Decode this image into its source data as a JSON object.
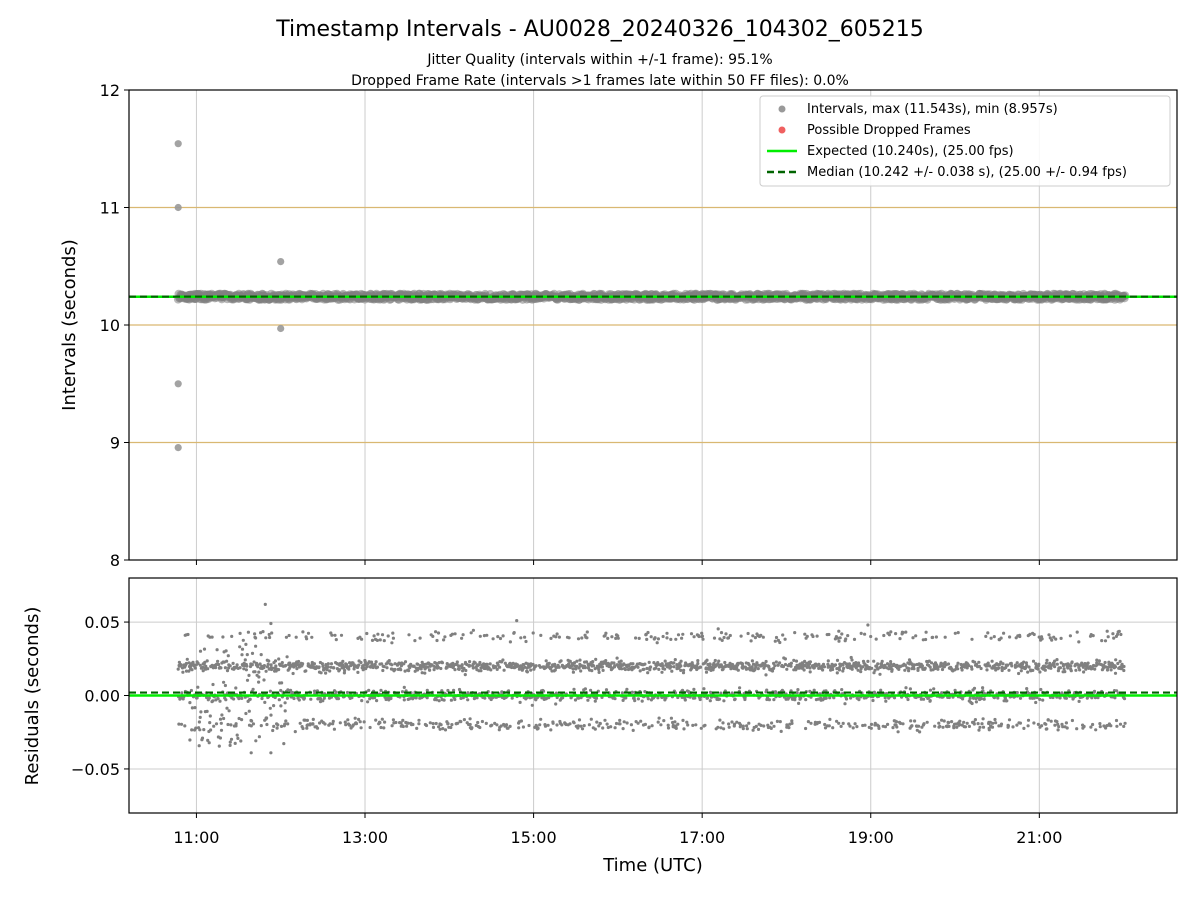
{
  "title": "Timestamp Intervals - AU0028_20240326_104302_605215",
  "subtitle_lines": [
    "Jitter Quality (intervals within +/-1 frame): 95.1%",
    "Dropped Frame Rate (intervals >1 frames late within 50 FF files): 0.0%"
  ],
  "colors": {
    "points": "#808080",
    "dropped": "#f06060",
    "expected": "#00ee00",
    "median": "#006400",
    "hband": "#d9b872",
    "grid": "#cccccc"
  },
  "chart_data": [
    {
      "type": "scatter",
      "panel": "intervals",
      "ylabel": "Intervals (seconds)",
      "ylim": [
        8,
        12
      ],
      "yticks": [
        "8",
        "9",
        "10",
        "11",
        "12"
      ],
      "xlim": [
        "10:12",
        "22:38"
      ],
      "grid": true,
      "horizontal_reference_lines": [
        9,
        10,
        11
      ],
      "legend_position": "upper right",
      "legend": [
        {
          "label": "Intervals, max (11.543s), min (8.957s)",
          "kind": "marker",
          "color": "#999999"
        },
        {
          "label": "Possible Dropped Frames",
          "kind": "marker",
          "color": "#f06060"
        },
        {
          "label": "Expected (10.240s), (25.00 fps)",
          "kind": "line",
          "color": "#00ee00"
        },
        {
          "label": "Median (10.242 +/- 0.038 s), (25.00 +/- 0.94 fps)",
          "kind": "dashed",
          "color": "#006400"
        }
      ],
      "expected": 10.24,
      "median": 10.242,
      "series": [
        {
          "name": "Intervals",
          "x_range": [
            "10:47",
            "22:01"
          ],
          "typical_value": 10.24,
          "spread": 0.05
        },
        {
          "name": "Outliers",
          "points": [
            {
              "x": "10:47",
              "y": 11.543
            },
            {
              "x": "10:47",
              "y": 11.0
            },
            {
              "x": "10:47",
              "y": 9.5
            },
            {
              "x": "10:47",
              "y": 8.957
            },
            {
              "x": "12:00",
              "y": 10.54
            },
            {
              "x": "12:00",
              "y": 9.97
            }
          ]
        }
      ]
    },
    {
      "type": "scatter",
      "panel": "residuals",
      "xlabel": "Time (UTC)",
      "ylabel": "Residuals (seconds)",
      "xlim": [
        "10:12",
        "22:38"
      ],
      "xticks": [
        "11:00",
        "13:00",
        "15:00",
        "17:00",
        "19:00",
        "21:00"
      ],
      "ylim": [
        -0.08,
        0.08
      ],
      "yticks": [
        "−0.05",
        "0.00",
        "0.05"
      ],
      "ytick_values": [
        -0.05,
        0.0,
        0.05
      ],
      "grid": true,
      "expected_residual": 0.0,
      "median_residual": 0.002,
      "series": [
        {
          "name": "Residuals",
          "x_range": [
            "10:47",
            "22:01"
          ],
          "bands": [
            -0.02,
            0.0,
            0.02,
            0.04
          ],
          "extremes": {
            "max": 0.062,
            "min": -0.039
          }
        }
      ]
    }
  ]
}
